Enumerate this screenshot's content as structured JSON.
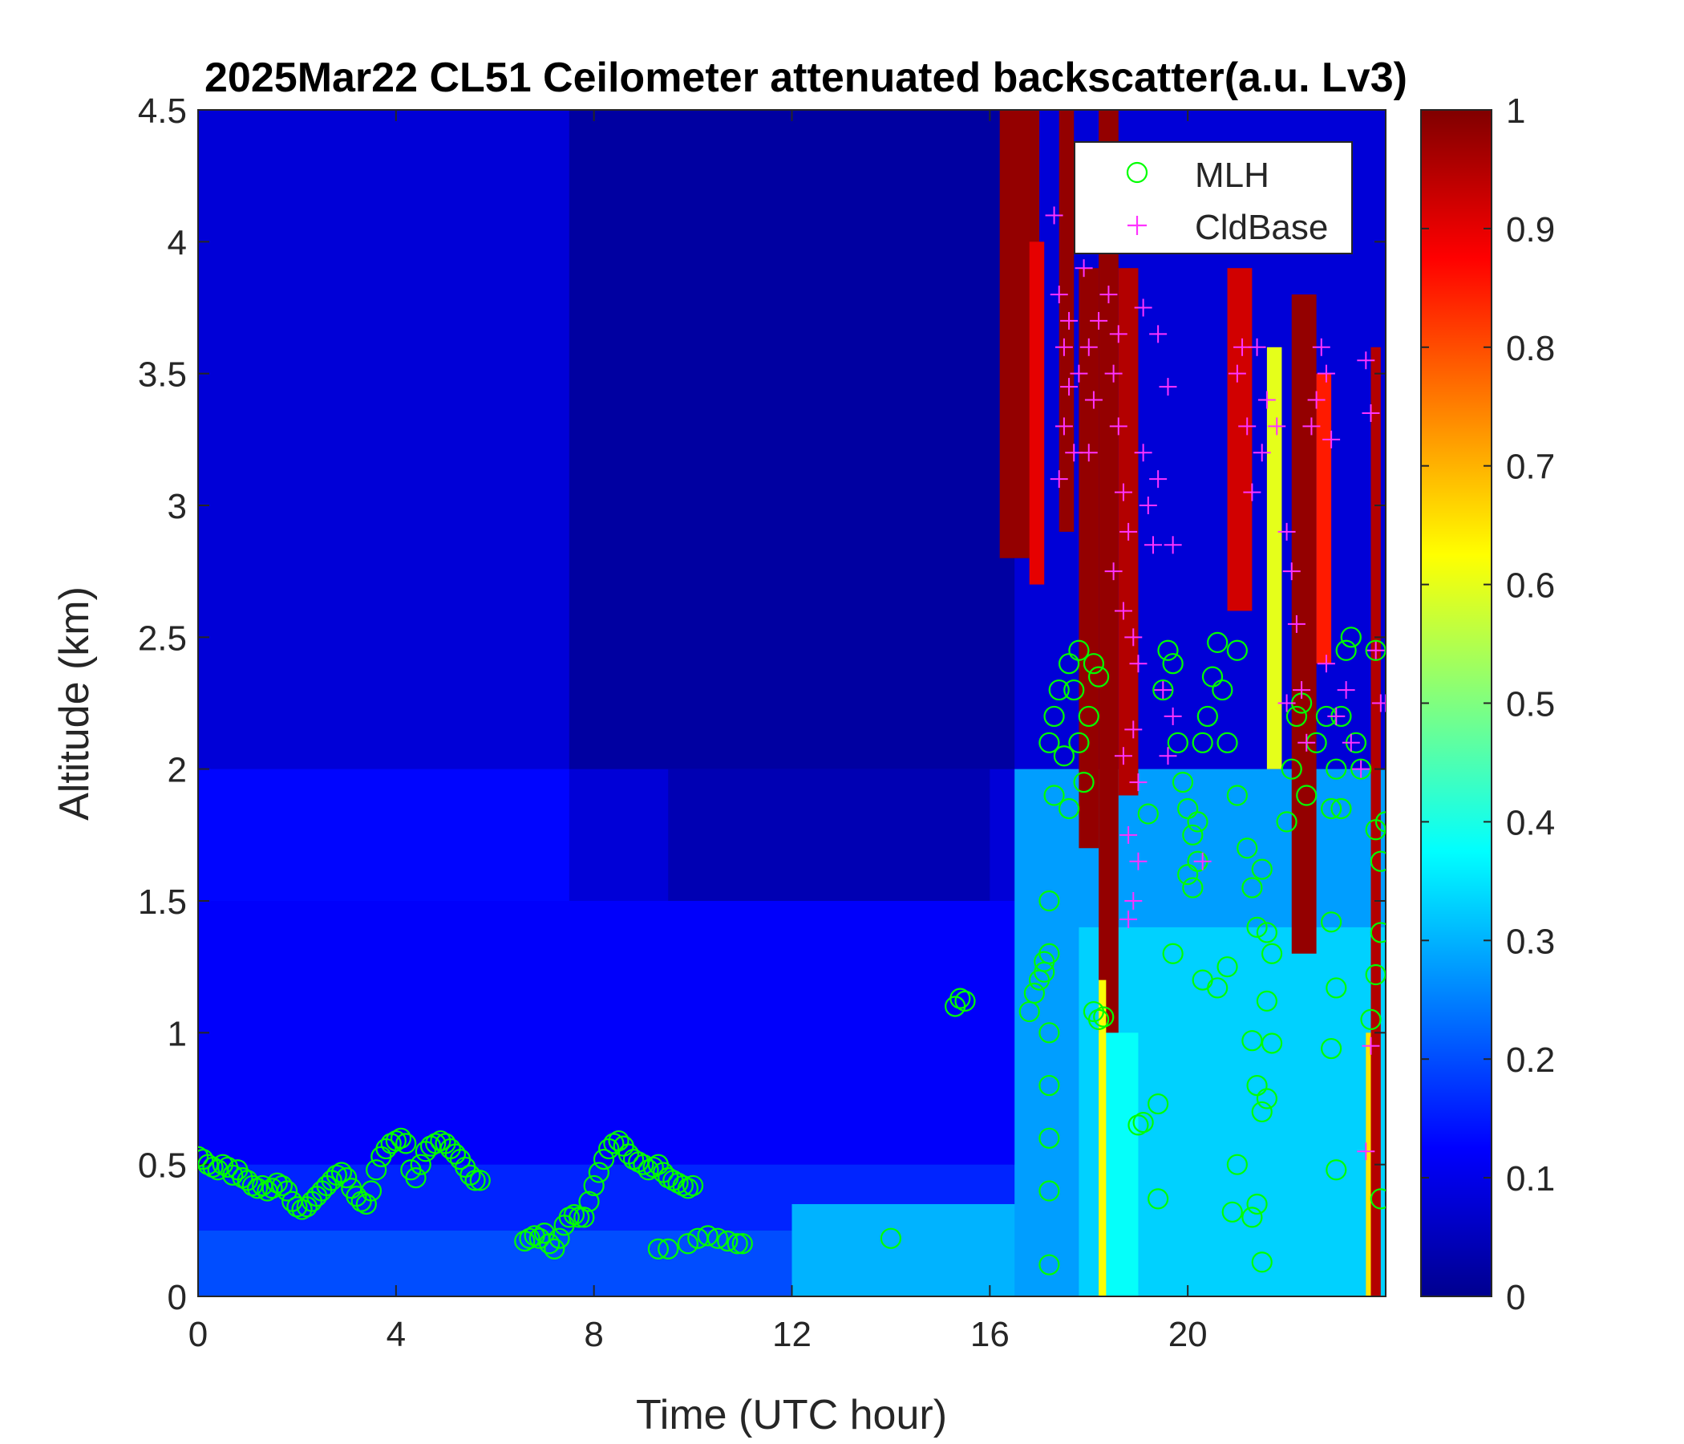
{
  "chart_data": {
    "type": "heatmap",
    "title": "2025Mar22 CL51 Ceilometer attenuated backscatter(a.u. Lv3)",
    "xlabel": "Time (UTC hour)",
    "ylabel": "Altitude (km)",
    "xlim": [
      0,
      24
    ],
    "ylim": [
      0,
      4.5
    ],
    "x_ticks": [
      0,
      4,
      8,
      12,
      16,
      20
    ],
    "x_tick_labels": [
      "0",
      "4",
      "8",
      "12",
      "16",
      "20"
    ],
    "y_ticks": [
      0,
      0.5,
      1,
      1.5,
      2,
      2.5,
      3,
      3.5,
      4,
      4.5
    ],
    "y_tick_labels": [
      "0",
      "0.5",
      "1",
      "1.5",
      "2",
      "2.5",
      "3",
      "3.5",
      "4",
      "4.5"
    ],
    "colorbar": {
      "colormap": "jet",
      "range": [
        0,
        1
      ],
      "ticks": [
        0,
        0.1,
        0.2,
        0.3,
        0.4,
        0.5,
        0.6,
        0.7,
        0.8,
        0.9,
        1
      ],
      "tick_labels": [
        "0",
        "0.1",
        "0.2",
        "0.3",
        "0.4",
        "0.5",
        "0.6",
        "0.7",
        "0.8",
        "0.9",
        "1"
      ]
    },
    "legend": {
      "placement": "top-right",
      "entries": [
        {
          "label": "MLH",
          "marker": "circle",
          "color": "#00ff00"
        },
        {
          "label": "CldBase",
          "marker": "plus",
          "color": "#ff33ff"
        }
      ]
    },
    "series": [
      {
        "name": "MLH",
        "marker": "circle",
        "color": "#00ff00",
        "points": [
          [
            0.0,
            0.53
          ],
          [
            0.1,
            0.52
          ],
          [
            0.2,
            0.5
          ],
          [
            0.3,
            0.49
          ],
          [
            0.4,
            0.48
          ],
          [
            0.5,
            0.5
          ],
          [
            0.6,
            0.49
          ],
          [
            0.7,
            0.46
          ],
          [
            0.8,
            0.48
          ],
          [
            0.9,
            0.45
          ],
          [
            1.0,
            0.44
          ],
          [
            1.1,
            0.42
          ],
          [
            1.2,
            0.41
          ],
          [
            1.3,
            0.42
          ],
          [
            1.4,
            0.4
          ],
          [
            1.5,
            0.41
          ],
          [
            1.6,
            0.43
          ],
          [
            1.7,
            0.42
          ],
          [
            1.8,
            0.4
          ],
          [
            1.9,
            0.36
          ],
          [
            2.0,
            0.34
          ],
          [
            2.1,
            0.33
          ],
          [
            2.2,
            0.34
          ],
          [
            2.3,
            0.36
          ],
          [
            2.4,
            0.38
          ],
          [
            2.5,
            0.4
          ],
          [
            2.6,
            0.42
          ],
          [
            2.7,
            0.44
          ],
          [
            2.8,
            0.46
          ],
          [
            2.9,
            0.47
          ],
          [
            3.0,
            0.45
          ],
          [
            3.1,
            0.41
          ],
          [
            3.2,
            0.38
          ],
          [
            3.3,
            0.36
          ],
          [
            3.4,
            0.35
          ],
          [
            3.5,
            0.4
          ],
          [
            3.6,
            0.48
          ],
          [
            3.7,
            0.53
          ],
          [
            3.8,
            0.56
          ],
          [
            3.9,
            0.58
          ],
          [
            4.0,
            0.59
          ],
          [
            4.1,
            0.6
          ],
          [
            4.2,
            0.58
          ],
          [
            4.3,
            0.48
          ],
          [
            4.4,
            0.45
          ],
          [
            4.5,
            0.5
          ],
          [
            4.6,
            0.55
          ],
          [
            4.7,
            0.57
          ],
          [
            4.8,
            0.58
          ],
          [
            4.9,
            0.59
          ],
          [
            5.0,
            0.58
          ],
          [
            5.1,
            0.56
          ],
          [
            5.2,
            0.54
          ],
          [
            5.3,
            0.52
          ],
          [
            5.4,
            0.49
          ],
          [
            5.5,
            0.46
          ],
          [
            5.6,
            0.44
          ],
          [
            5.7,
            0.44
          ],
          [
            6.6,
            0.21
          ],
          [
            6.7,
            0.22
          ],
          [
            6.8,
            0.23
          ],
          [
            6.9,
            0.22
          ],
          [
            7.0,
            0.24
          ],
          [
            7.1,
            0.2
          ],
          [
            7.2,
            0.18
          ],
          [
            7.3,
            0.22
          ],
          [
            7.4,
            0.27
          ],
          [
            7.5,
            0.3
          ],
          [
            7.6,
            0.31
          ],
          [
            7.7,
            0.3
          ],
          [
            7.8,
            0.3
          ],
          [
            7.9,
            0.36
          ],
          [
            8.0,
            0.42
          ],
          [
            8.1,
            0.47
          ],
          [
            8.2,
            0.52
          ],
          [
            8.3,
            0.56
          ],
          [
            8.4,
            0.58
          ],
          [
            8.5,
            0.59
          ],
          [
            8.6,
            0.57
          ],
          [
            8.7,
            0.54
          ],
          [
            8.8,
            0.52
          ],
          [
            8.9,
            0.51
          ],
          [
            9.0,
            0.5
          ],
          [
            9.1,
            0.48
          ],
          [
            9.2,
            0.49
          ],
          [
            9.3,
            0.5
          ],
          [
            9.4,
            0.47
          ],
          [
            9.5,
            0.45
          ],
          [
            9.6,
            0.44
          ],
          [
            9.7,
            0.43
          ],
          [
            9.8,
            0.42
          ],
          [
            9.9,
            0.41
          ],
          [
            10.0,
            0.42
          ],
          [
            9.3,
            0.18
          ],
          [
            9.5,
            0.18
          ],
          [
            9.9,
            0.2
          ],
          [
            10.1,
            0.22
          ],
          [
            10.3,
            0.23
          ],
          [
            10.5,
            0.22
          ],
          [
            10.7,
            0.21
          ],
          [
            10.9,
            0.2
          ],
          [
            11.0,
            0.2
          ],
          [
            14.0,
            0.22
          ],
          [
            15.3,
            1.1
          ],
          [
            15.4,
            1.13
          ],
          [
            15.5,
            1.12
          ],
          [
            16.8,
            1.08
          ],
          [
            16.9,
            1.15
          ],
          [
            17.0,
            1.2
          ],
          [
            17.1,
            1.27
          ],
          [
            17.2,
            1.3
          ],
          [
            17.1,
            1.23
          ],
          [
            17.2,
            0.12
          ],
          [
            17.2,
            0.4
          ],
          [
            17.2,
            0.6
          ],
          [
            17.2,
            0.8
          ],
          [
            17.2,
            1.0
          ],
          [
            17.2,
            1.5
          ],
          [
            17.2,
            2.1
          ],
          [
            17.3,
            2.2
          ],
          [
            17.3,
            1.9
          ],
          [
            17.4,
            2.3
          ],
          [
            17.5,
            2.05
          ],
          [
            17.6,
            2.4
          ],
          [
            17.7,
            2.3
          ],
          [
            17.8,
            2.1
          ],
          [
            17.9,
            1.95
          ],
          [
            18.0,
            2.2
          ],
          [
            18.1,
            2.4
          ],
          [
            18.2,
            2.35
          ],
          [
            17.6,
            1.85
          ],
          [
            17.8,
            2.45
          ],
          [
            18.1,
            1.08
          ],
          [
            18.2,
            1.05
          ],
          [
            18.3,
            1.06
          ],
          [
            19.0,
            0.65
          ],
          [
            19.1,
            0.66
          ],
          [
            19.4,
            0.73
          ],
          [
            19.4,
            0.37
          ],
          [
            19.2,
            1.83
          ],
          [
            19.5,
            2.3
          ],
          [
            19.6,
            2.45
          ],
          [
            19.7,
            2.4
          ],
          [
            19.8,
            2.1
          ],
          [
            19.9,
            1.95
          ],
          [
            20.0,
            1.85
          ],
          [
            20.1,
            1.75
          ],
          [
            20.2,
            1.65
          ],
          [
            20.3,
            2.1
          ],
          [
            20.4,
            2.2
          ],
          [
            20.5,
            2.35
          ],
          [
            20.6,
            2.48
          ],
          [
            20.7,
            2.3
          ],
          [
            20.8,
            2.1
          ],
          [
            21.0,
            2.45
          ],
          [
            20.0,
            1.6
          ],
          [
            20.1,
            1.55
          ],
          [
            20.2,
            1.8
          ],
          [
            19.7,
            1.3
          ],
          [
            20.3,
            1.2
          ],
          [
            20.6,
            1.17
          ],
          [
            20.8,
            1.25
          ],
          [
            21.0,
            1.9
          ],
          [
            20.9,
            0.32
          ],
          [
            21.0,
            0.5
          ],
          [
            21.2,
            1.7
          ],
          [
            21.3,
            1.55
          ],
          [
            21.4,
            1.4
          ],
          [
            21.5,
            1.62
          ],
          [
            21.6,
            1.38
          ],
          [
            21.7,
            1.3
          ],
          [
            21.3,
            0.97
          ],
          [
            21.4,
            0.8
          ],
          [
            21.5,
            0.7
          ],
          [
            21.6,
            0.75
          ],
          [
            21.7,
            0.96
          ],
          [
            21.3,
            0.3
          ],
          [
            21.4,
            0.35
          ],
          [
            21.5,
            0.13
          ],
          [
            21.6,
            1.12
          ],
          [
            22.0,
            1.8
          ],
          [
            22.1,
            2.0
          ],
          [
            22.2,
            2.2
          ],
          [
            22.3,
            2.25
          ],
          [
            22.4,
            1.9
          ],
          [
            22.6,
            2.1
          ],
          [
            22.8,
            2.2
          ],
          [
            22.9,
            1.85
          ],
          [
            23.0,
            2.0
          ],
          [
            23.1,
            2.2
          ],
          [
            23.2,
            2.45
          ],
          [
            23.3,
            2.5
          ],
          [
            23.4,
            2.1
          ],
          [
            23.5,
            2.0
          ],
          [
            23.1,
            1.85
          ],
          [
            22.9,
            1.42
          ],
          [
            23.0,
            1.17
          ],
          [
            22.9,
            0.94
          ],
          [
            23.0,
            0.48
          ],
          [
            23.7,
            1.05
          ],
          [
            23.8,
            1.22
          ],
          [
            23.9,
            1.65
          ],
          [
            24.0,
            1.8
          ],
          [
            23.9,
            0.37
          ],
          [
            23.8,
            2.45
          ],
          [
            23.8,
            1.77
          ],
          [
            23.9,
            1.38
          ]
        ]
      },
      {
        "name": "CldBase",
        "marker": "plus",
        "color": "#ff33ff",
        "points": [
          [
            17.3,
            4.1
          ],
          [
            17.4,
            3.8
          ],
          [
            17.5,
            3.6
          ],
          [
            17.6,
            3.7
          ],
          [
            17.5,
            3.3
          ],
          [
            17.6,
            3.45
          ],
          [
            17.7,
            3.2
          ],
          [
            17.4,
            3.1
          ],
          [
            17.8,
            3.5
          ],
          [
            17.9,
            3.9
          ],
          [
            18.0,
            3.6
          ],
          [
            18.1,
            3.4
          ],
          [
            18.0,
            3.2
          ],
          [
            18.2,
            3.7
          ],
          [
            18.4,
            3.8
          ],
          [
            18.5,
            3.5
          ],
          [
            18.6,
            3.3
          ],
          [
            18.7,
            3.05
          ],
          [
            18.8,
            2.9
          ],
          [
            18.5,
            2.75
          ],
          [
            18.7,
            2.6
          ],
          [
            18.9,
            2.5
          ],
          [
            19.0,
            2.4
          ],
          [
            18.9,
            2.15
          ],
          [
            18.7,
            2.05
          ],
          [
            19.0,
            1.95
          ],
          [
            18.8,
            1.75
          ],
          [
            19.0,
            1.65
          ],
          [
            18.9,
            1.5
          ],
          [
            18.8,
            1.43
          ],
          [
            18.6,
            3.65
          ],
          [
            19.1,
            3.2
          ],
          [
            19.2,
            3.0
          ],
          [
            19.3,
            2.85
          ],
          [
            19.4,
            3.1
          ],
          [
            19.4,
            3.65
          ],
          [
            19.6,
            3.45
          ],
          [
            19.7,
            2.85
          ],
          [
            19.5,
            2.3
          ],
          [
            19.6,
            2.05
          ],
          [
            19.7,
            2.2
          ],
          [
            19.1,
            3.75
          ],
          [
            20.3,
            1.65
          ],
          [
            21.0,
            3.5
          ],
          [
            21.1,
            3.6
          ],
          [
            21.2,
            3.3
          ],
          [
            21.3,
            3.05
          ],
          [
            21.4,
            3.6
          ],
          [
            21.5,
            3.2
          ],
          [
            21.6,
            3.4
          ],
          [
            21.8,
            3.3
          ],
          [
            22.0,
            2.9
          ],
          [
            22.1,
            2.75
          ],
          [
            22.2,
            2.55
          ],
          [
            22.3,
            2.3
          ],
          [
            22.4,
            2.1
          ],
          [
            22.0,
            2.25
          ],
          [
            22.5,
            3.3
          ],
          [
            22.6,
            3.4
          ],
          [
            22.7,
            3.6
          ],
          [
            22.8,
            3.5
          ],
          [
            22.9,
            3.25
          ],
          [
            22.8,
            2.4
          ],
          [
            23.0,
            2.2
          ],
          [
            23.2,
            2.3
          ],
          [
            23.3,
            2.1
          ],
          [
            23.5,
            2.0
          ],
          [
            23.6,
            3.55
          ],
          [
            23.7,
            3.35
          ],
          [
            23.8,
            2.45
          ],
          [
            23.9,
            2.25
          ],
          [
            24.0,
            2.25
          ],
          [
            23.7,
            0.95
          ],
          [
            23.6,
            0.55
          ]
        ]
      }
    ]
  }
}
